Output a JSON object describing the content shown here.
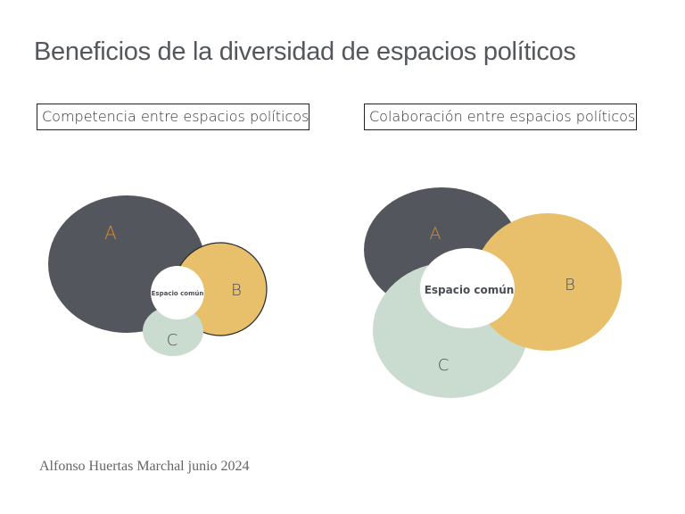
{
  "title": "Beneficios de la diversidad de espacios políticos",
  "panels": [
    {
      "heading": "Competencia entre espacios políticos",
      "labels": {
        "a": "A",
        "b": "B",
        "c": "C",
        "common": "Espacio común"
      }
    },
    {
      "heading": "Colaboración entre espacios políticos",
      "labels": {
        "a": "A",
        "b": "B",
        "c": "C",
        "common": "Espacio común"
      }
    }
  ],
  "footer": "Alfonso Huertas Marchal junio 2024",
  "colors": {
    "a": "#53575d",
    "b": "#e8bf6a",
    "c": "#cadbd0",
    "a_label": "#d58a2e",
    "text": "#4a4e54"
  }
}
